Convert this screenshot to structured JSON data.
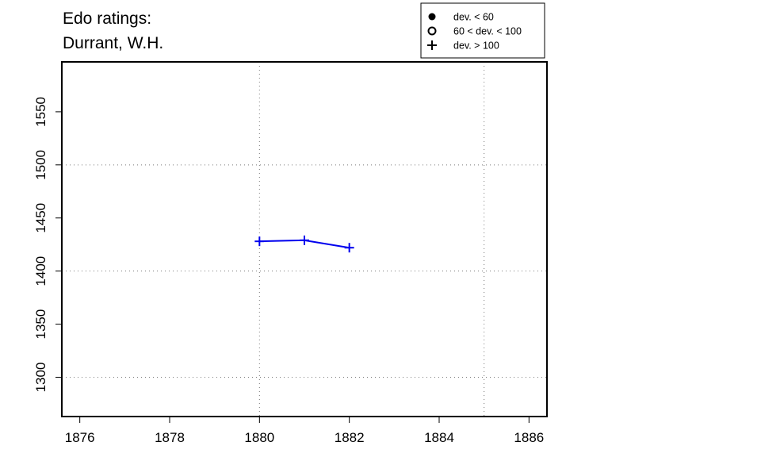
{
  "chart_data": {
    "type": "line",
    "title_lines": [
      "Edo ratings:",
      "Durrant, W.H."
    ],
    "xlim": [
      1875.6,
      1886.4
    ],
    "ylim": [
      1263,
      1597
    ],
    "x_ticks": [
      1876,
      1878,
      1880,
      1882,
      1884,
      1886
    ],
    "y_ticks": [
      1300,
      1350,
      1400,
      1450,
      1500,
      1550
    ],
    "x_gridlines": [
      1880,
      1885
    ],
    "y_gridlines": [
      1300,
      1400,
      1500
    ],
    "grid": "dotted",
    "line_color": "#0000ee",
    "series": [
      {
        "marker": "plus",
        "points": [
          {
            "x": 1880,
            "y": 1428
          },
          {
            "x": 1881,
            "y": 1429
          },
          {
            "x": 1882,
            "y": 1422
          }
        ]
      }
    ],
    "legend": {
      "placement": "top-right",
      "entries": [
        {
          "marker": "filled-circle",
          "label": "dev. < 60"
        },
        {
          "marker": "open-circle",
          "label": "60 < dev. < 100"
        },
        {
          "marker": "plus",
          "label": "dev. > 100"
        }
      ]
    }
  }
}
